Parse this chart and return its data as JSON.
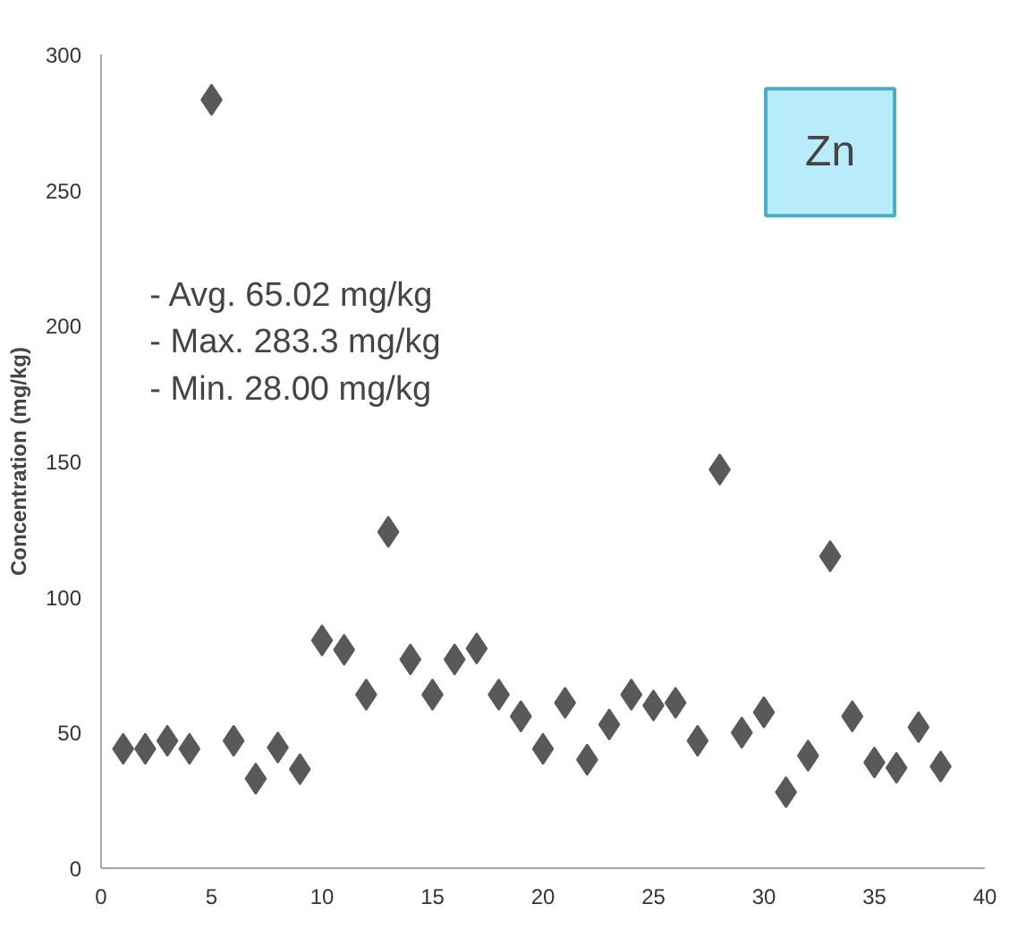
{
  "chart_data": {
    "type": "scatter",
    "ylabel": "Concentration (mg/kg)",
    "x": [
      1,
      2,
      3,
      4,
      5,
      6,
      7,
      8,
      9,
      10,
      11,
      12,
      13,
      14,
      15,
      16,
      17,
      18,
      19,
      20,
      21,
      22,
      23,
      24,
      25,
      26,
      27,
      28,
      29,
      30,
      31,
      32,
      33,
      34,
      35,
      36,
      37,
      38
    ],
    "series": [
      {
        "color": "#595959",
        "values": [
          44,
          44,
          47,
          44,
          283.3,
          47,
          33,
          44.5,
          36.5,
          84,
          80.5,
          64,
          124,
          77,
          64,
          77,
          81,
          64,
          56,
          44,
          61,
          40,
          53,
          64,
          60,
          61,
          47,
          147,
          50,
          57.5,
          28,
          41.5,
          115,
          56,
          39,
          37,
          52,
          37.5
        ]
      }
    ],
    "marker": "diamond",
    "xlim": [
      0,
      40
    ],
    "xticks": [
      0,
      5,
      10,
      15,
      20,
      25,
      30,
      35,
      40
    ],
    "ylim": [
      0,
      300
    ],
    "yticks": [
      0,
      50,
      100,
      150,
      200,
      250,
      300
    ],
    "grid": false,
    "annotations": [
      "Zn",
      "- Avg. 65.02 mg/kg\n- Max. 283.3 mg/kg\n- Min.  28.00 mg/kg"
    ]
  }
}
